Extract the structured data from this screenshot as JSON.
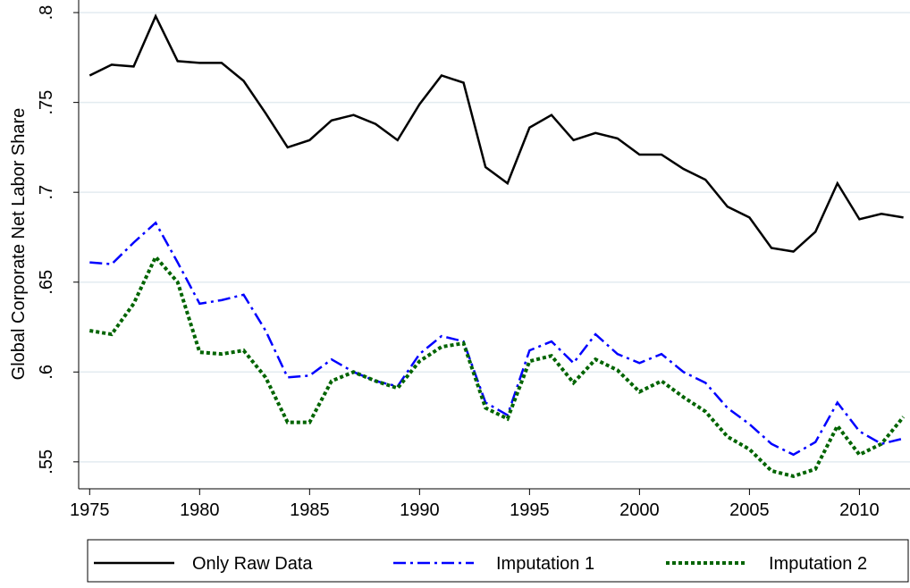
{
  "chart_data": {
    "type": "line",
    "ylabel": "Global Corporate Net Labor Share",
    "x": [
      1975,
      1976,
      1977,
      1978,
      1979,
      1980,
      1981,
      1982,
      1983,
      1984,
      1985,
      1986,
      1987,
      1988,
      1989,
      1990,
      1991,
      1992,
      1993,
      1994,
      1995,
      1996,
      1997,
      1998,
      1999,
      2000,
      2001,
      2002,
      2003,
      2004,
      2005,
      2006,
      2007,
      2008,
      2009,
      2010,
      2011,
      2012
    ],
    "series": [
      {
        "name": "Only Raw Data",
        "color": "#000000",
        "dash": "solid",
        "values": [
          0.765,
          0.771,
          0.77,
          0.798,
          0.773,
          0.772,
          0.772,
          0.762,
          0.744,
          0.725,
          0.729,
          0.74,
          0.743,
          0.738,
          0.729,
          0.749,
          0.765,
          0.761,
          0.714,
          0.705,
          0.736,
          0.743,
          0.729,
          0.733,
          0.73,
          0.721,
          0.721,
          0.713,
          0.707,
          0.692,
          0.686,
          0.669,
          0.667,
          0.678,
          0.705,
          0.685,
          0.688,
          0.686
        ]
      },
      {
        "name": "Imputation 1",
        "color": "#0000ff",
        "dash": "dashdot",
        "values": [
          0.661,
          0.66,
          0.672,
          0.683,
          0.661,
          0.638,
          0.64,
          0.643,
          0.623,
          0.597,
          0.598,
          0.607,
          0.6,
          0.595,
          0.592,
          0.61,
          0.62,
          0.617,
          0.583,
          0.576,
          0.612,
          0.617,
          0.605,
          0.621,
          0.61,
          0.605,
          0.61,
          0.6,
          0.594,
          0.58,
          0.571,
          0.56,
          0.554,
          0.561,
          0.583,
          0.567,
          0.56,
          0.563
        ]
      },
      {
        "name": "Imputation 2",
        "color": "#006400",
        "dash": "dot",
        "values": [
          0.623,
          0.621,
          0.638,
          0.664,
          0.65,
          0.611,
          0.61,
          0.612,
          0.597,
          0.572,
          0.572,
          0.595,
          0.6,
          0.595,
          0.591,
          0.606,
          0.614,
          0.616,
          0.58,
          0.574,
          0.606,
          0.609,
          0.594,
          0.607,
          0.601,
          0.589,
          0.595,
          0.586,
          0.578,
          0.564,
          0.557,
          0.545,
          0.542,
          0.546,
          0.57,
          0.554,
          0.56,
          0.575
        ]
      }
    ],
    "xlim": [
      1974.5,
      2012.3
    ],
    "xticks": [
      1975,
      1980,
      1985,
      1990,
      1995,
      2000,
      2005,
      2010
    ],
    "ylim": [
      0.535,
      0.807
    ],
    "yticks": [
      {
        "value": 0.55,
        "label": ".55"
      },
      {
        "value": 0.6,
        "label": ".6"
      },
      {
        "value": 0.65,
        "label": ".65"
      },
      {
        "value": 0.7,
        "label": ".7"
      },
      {
        "value": 0.75,
        "label": ".75"
      },
      {
        "value": 0.8,
        "label": ".8"
      }
    ],
    "grid": true,
    "legend": "bottom"
  }
}
